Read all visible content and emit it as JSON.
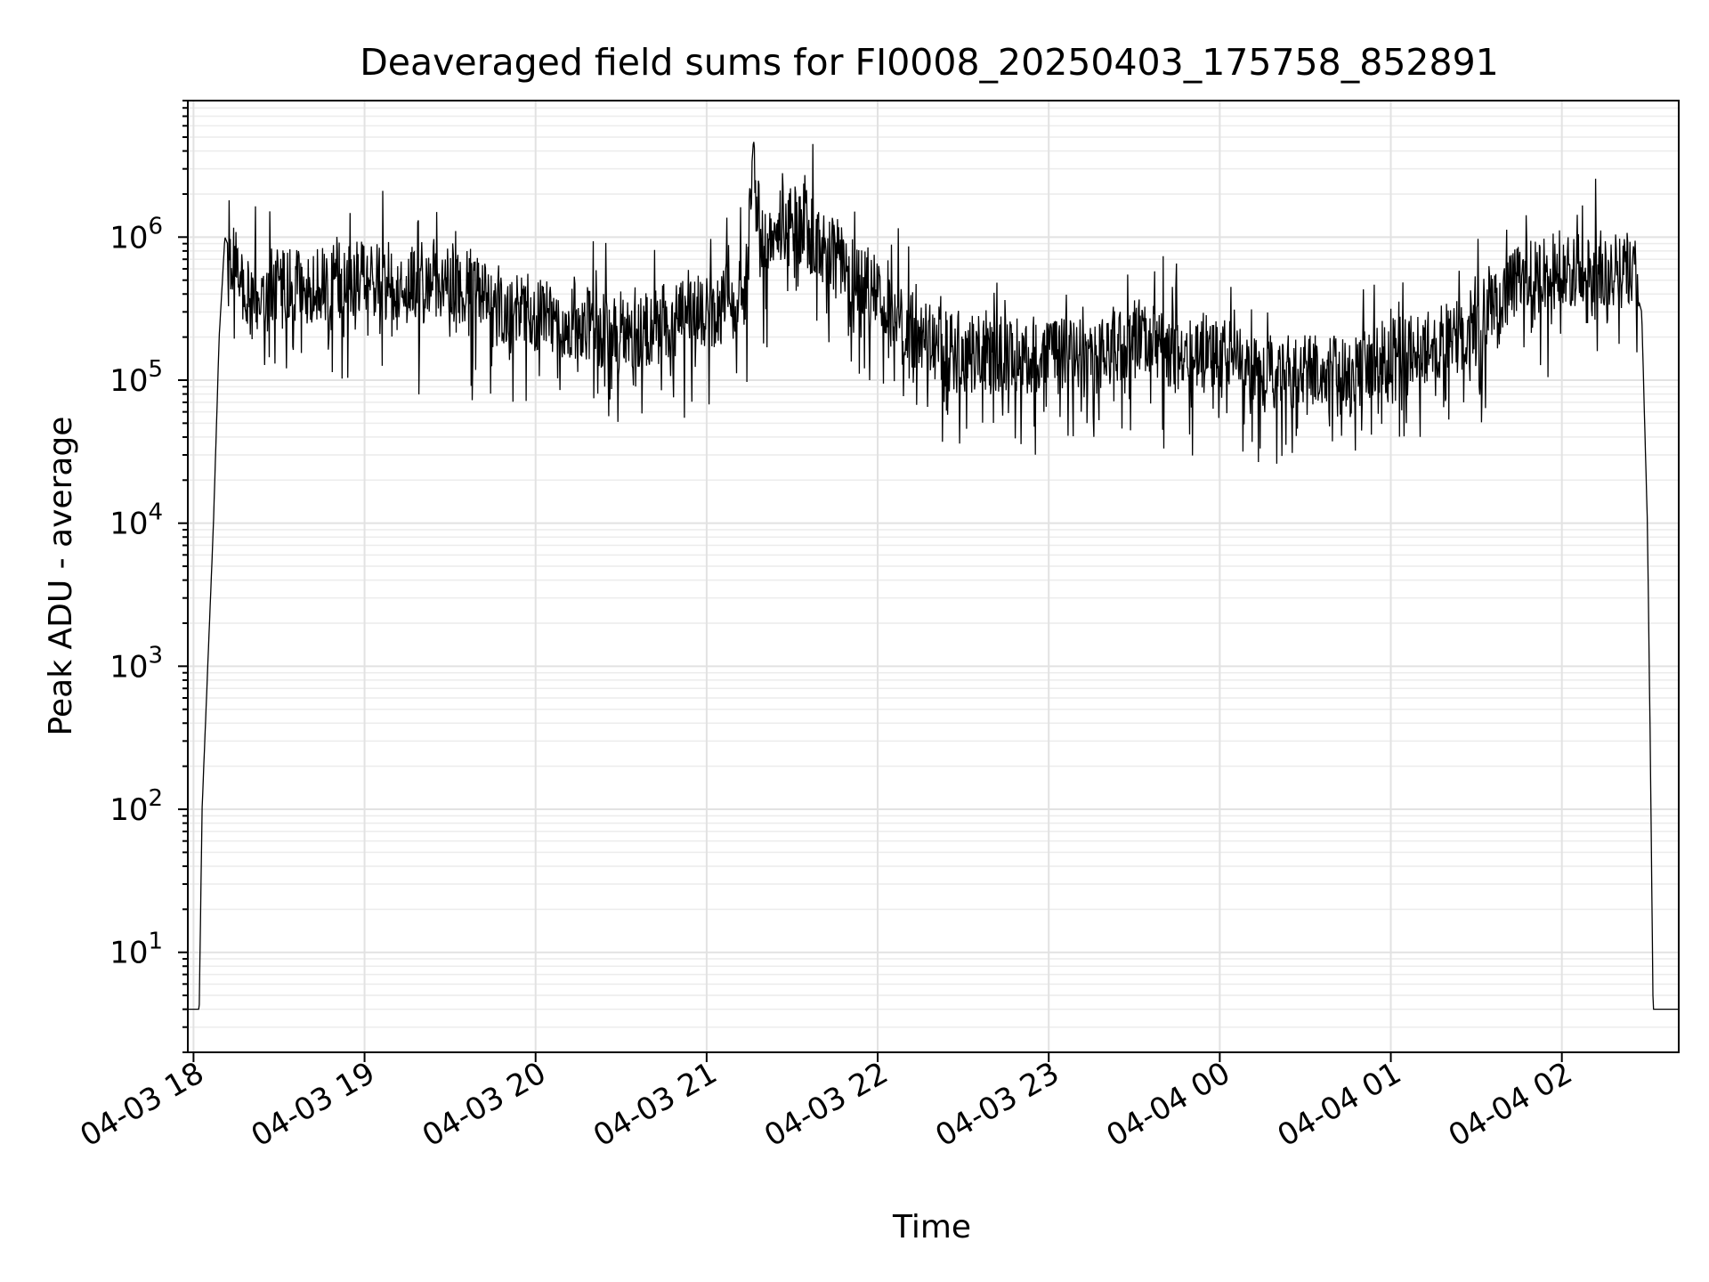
{
  "chart_data": {
    "type": "line",
    "title": "Deaveraged field sums for FI0008_20250403_175758_852891",
    "xlabel": "Time",
    "ylabel": "Peak ADU - average",
    "y_scale": "log",
    "ylim": [
      2,
      9000000
    ],
    "xlim": [
      "2025-04-03 17:58",
      "2025-04-04 02:41"
    ],
    "grid": true,
    "legend": "none",
    "line_color": "#000000",
    "x_tick_labels": [
      "04-03 18",
      "04-03 19",
      "04-03 20",
      "04-03 21",
      "04-03 22",
      "04-03 23",
      "04-04 00",
      "04-04 01",
      "04-04 02"
    ],
    "x_ticks": [
      "2025-04-03 18:00",
      "2025-04-03 19:00",
      "2025-04-03 20:00",
      "2025-04-03 21:00",
      "2025-04-03 22:00",
      "2025-04-03 23:00",
      "2025-04-04 00:00",
      "2025-04-04 01:00",
      "2025-04-04 02:00"
    ],
    "y_ticks": [
      {
        "value": 10,
        "base": "10",
        "exp": "1"
      },
      {
        "value": 100,
        "base": "10",
        "exp": "2"
      },
      {
        "value": 1000,
        "base": "10",
        "exp": "3"
      },
      {
        "value": 10000,
        "base": "10",
        "exp": "4"
      },
      {
        "value": 100000,
        "base": "10",
        "exp": "5"
      },
      {
        "value": 1000000,
        "base": "10",
        "exp": "6"
      }
    ],
    "series": [
      {
        "x": [
          "2025-04-03 17:58",
          "2025-04-03 18:02",
          "2025-04-03 18:03",
          "2025-04-03 18:05",
          "2025-04-03 18:07",
          "2025-04-03 18:09",
          "2025-04-03 18:11",
          "2025-04-03 18:13",
          "2025-04-03 18:15",
          "2025-04-03 18:20",
          "2025-04-03 18:30",
          "2025-04-03 18:45",
          "2025-04-03 19:00",
          "2025-04-03 19:15",
          "2025-04-03 19:30",
          "2025-04-03 19:45",
          "2025-04-03 20:00",
          "2025-04-03 20:15",
          "2025-04-03 20:30",
          "2025-04-03 20:45",
          "2025-04-03 21:00",
          "2025-04-03 21:14",
          "2025-04-03 21:16",
          "2025-04-03 21:20",
          "2025-04-03 21:30",
          "2025-04-03 21:45",
          "2025-04-03 22:00",
          "2025-04-03 22:15",
          "2025-04-03 22:30",
          "2025-04-03 22:45",
          "2025-04-03 23:00",
          "2025-04-03 23:15",
          "2025-04-03 23:30",
          "2025-04-03 23:45",
          "2025-04-04 00:00",
          "2025-04-04 00:15",
          "2025-04-04 00:30",
          "2025-04-04 00:45",
          "2025-04-04 01:00",
          "2025-04-04 01:15",
          "2025-04-04 01:30",
          "2025-04-04 01:45",
          "2025-04-04 02:00",
          "2025-04-04 02:10",
          "2025-04-04 02:24",
          "2025-04-04 02:28",
          "2025-04-04 02:30",
          "2025-04-04 02:31",
          "2025-04-04 02:32",
          "2025-04-04 02:41"
        ],
        "y": [
          4,
          4,
          100,
          1000,
          10000,
          200000,
          1000000,
          800000,
          600000,
          350000,
          500000,
          450000,
          550000,
          450000,
          500000,
          350000,
          300000,
          250000,
          200000,
          250000,
          300000,
          400000,
          3000000,
          800000,
          1500000,
          700000,
          400000,
          200000,
          150000,
          150000,
          150000,
          150000,
          200000,
          160000,
          150000,
          110000,
          120000,
          100000,
          150000,
          170000,
          250000,
          500000,
          600000,
          600000,
          600000,
          300000,
          10000,
          300,
          4,
          4
        ]
      }
    ]
  }
}
